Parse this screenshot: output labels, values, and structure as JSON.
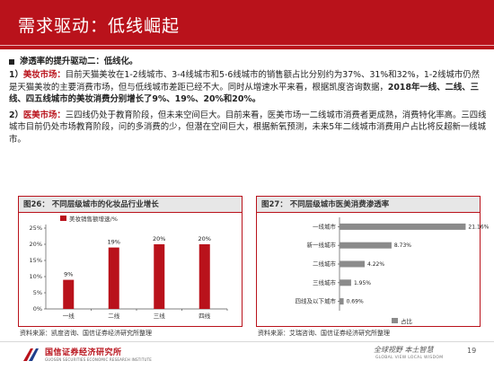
{
  "title": "需求驱动：低线崛起",
  "lead": "渗透率的提升驱动二：低线化。",
  "points": [
    {
      "num": "1）",
      "head": "美妆市场：",
      "text1": "目前天猫美妆在1-2线城市、3-4线城市和5-6线城市的销售额占比分别约为37%、31%和32%，1-2线城市仍然是天猫美妆的主要消费市场，但与低线城市差距已经不大。同时从增速水平来看，根据凯度咨询数据，",
      "text2": "2018年一线、二线、三线、四五线城市的美妆消费分别增长了9%、19%、20%和20%。"
    },
    {
      "num": "2）",
      "head": "医美市场：",
      "text1": "三四线仍处于教育阶段，但未来空间巨大。目前来看，医美市场一二线城市消费者更成熟，消费特化率高。三四线城市目前仍处市场教育阶段，问的多消费的少，但潜在空间巨大，根据新氧预测，未来5年二线城市消费用户占比将反超新一线城市。"
    }
  ],
  "fig26": {
    "title": "图26：  不同层级城市的化妆品行业增长",
    "source": "资料来源：凯度咨询、国信证券经济研究所整理"
  },
  "fig27": {
    "title": "图27：  不同层级城市医美消费渗透率",
    "source": "资料来源：艾瑞咨询、国信证券经济研究所整理"
  },
  "chart_data": [
    {
      "type": "bar",
      "categories": [
        "一线",
        "二线",
        "三线",
        "四线"
      ],
      "series": [
        {
          "name": "美妆销售额增速/%",
          "values": [
            9,
            19,
            20,
            20
          ]
        }
      ],
      "data_labels": [
        "9%",
        "19%",
        "20%",
        "20%"
      ],
      "yticks": [
        "0%",
        "5%",
        "10%",
        "15%",
        "20%",
        "25%"
      ],
      "ylim": [
        0,
        25
      ],
      "color": "#b9121b",
      "legend": "top-left"
    },
    {
      "type": "bar",
      "orientation": "horizontal",
      "categories": [
        "一线城市",
        "新一线城市",
        "二线城市",
        "三线城市",
        "四线及以下城市"
      ],
      "series": [
        {
          "name": "占比",
          "values": [
            21.16,
            8.73,
            4.22,
            1.95,
            0.69
          ]
        }
      ],
      "data_labels": [
        "21.16%",
        "8.73%",
        "4.22%",
        "1.95%",
        "0.69%"
      ],
      "xlim": [
        0,
        22
      ],
      "color": "#8b8b8b",
      "legend": "bottom-center"
    }
  ],
  "footer": {
    "company": "国信证券经济研究所",
    "company_en": "GUOSEN SECURITIES ECONOMIC RESEARCH INSTITUTE",
    "slogan": "全球视野  本土智慧",
    "slogan_en": "GLOBAL VIEW    LOCAL WISDOM",
    "page": "19"
  }
}
